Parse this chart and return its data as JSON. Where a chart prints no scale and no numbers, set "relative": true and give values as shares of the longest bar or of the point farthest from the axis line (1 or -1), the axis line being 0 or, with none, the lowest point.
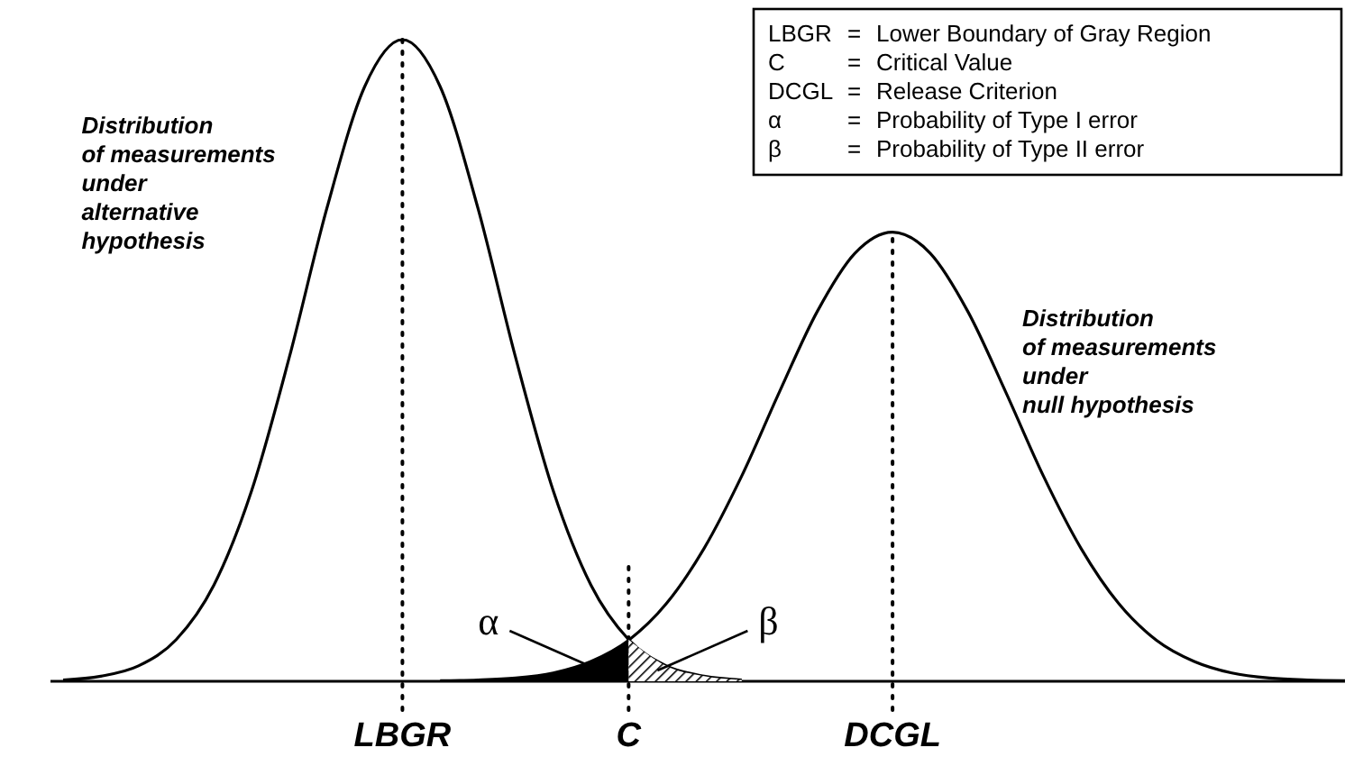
{
  "chart_data": {
    "type": "line",
    "relative": true,
    "tick_labels": "x",
    "marker": "none",
    "line_style": "solid",
    "categories": [
      null,
      null,
      null,
      null,
      null,
      null,
      null,
      null,
      null,
      "LBGR",
      null,
      null,
      null,
      null,
      null,
      "C",
      null,
      null,
      null,
      null,
      null,
      null,
      "DCGL",
      null,
      null,
      null,
      null,
      null,
      null,
      null,
      null,
      null,
      null,
      null,
      null
    ],
    "series": [
      {
        "name": "Distribution\nof measurements\nunder\nalternative\nhypothesis",
        "color": "#000000",
        "values": [
          0.002,
          0.008,
          0.024,
          0.065,
          0.15,
          0.297,
          0.505,
          0.738,
          0.927,
          1,
          0.927,
          0.738,
          0.505,
          0.297,
          0.15,
          0.065,
          0.024,
          0.008,
          0.002,
          null,
          null,
          null,
          null,
          null,
          null,
          null,
          null,
          null,
          null,
          null,
          null,
          null,
          null,
          null,
          null
        ]
      },
      {
        "name": "Distribution\nof measurements\nunder\nnull hypothesis",
        "color": "#000000",
        "values": [
          null,
          null,
          null,
          null,
          null,
          null,
          null,
          null,
          null,
          null,
          0.001,
          0.002,
          0.005,
          0.013,
          0.031,
          0.064,
          0.121,
          0.207,
          0.32,
          0.451,
          0.576,
          0.667,
          0.7,
          0.667,
          0.576,
          0.451,
          0.32,
          0.207,
          0.121,
          0.064,
          0.031,
          0.013,
          0.005,
          0.002,
          0.001
        ]
      },
      {
        "type": "area",
        "name": "α",
        "color": "#000000",
        "values": [
          null,
          null,
          null,
          null,
          null,
          null,
          null,
          null,
          null,
          null,
          0.001,
          0.002,
          0.005,
          0.013,
          0.031,
          0.064,
          null,
          null,
          null,
          null,
          null,
          null,
          null,
          null,
          null,
          null,
          null,
          null,
          null,
          null,
          null,
          null,
          null,
          null,
          null
        ]
      },
      {
        "type": "area",
        "name": "β",
        "color": "#000000",
        "values": [
          null,
          null,
          null,
          null,
          null,
          null,
          null,
          null,
          null,
          null,
          null,
          null,
          null,
          null,
          null,
          0.065,
          0.024,
          0.008,
          0.002,
          null,
          null,
          null,
          null,
          null,
          null,
          null,
          null,
          null,
          null,
          null,
          null,
          null,
          null,
          null,
          null
        ]
      }
    ],
    "ref_lines": [
      {
        "axis": "x",
        "value": "LBGR",
        "line_style": "dotted"
      },
      {
        "axis": "x",
        "value": "C",
        "line_style": "dotted"
      },
      {
        "axis": "x",
        "value": "DCGL",
        "line_style": "dotted"
      }
    ],
    "annotations": [
      "LBGR = Lower Boundary of Gray Region",
      "C = Critical Value",
      "DCGL = Release Criterion",
      "α = Probability of Type I error",
      "β = Probability of Type II error"
    ]
  }
}
